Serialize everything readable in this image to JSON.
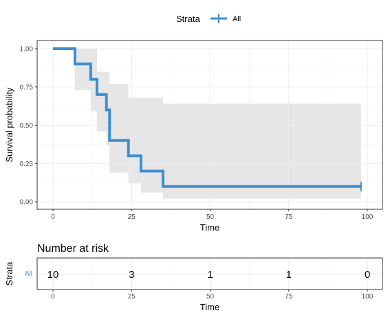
{
  "legend": {
    "title": "Strata",
    "label": "All",
    "color": "#3d8fcf"
  },
  "chart_data": [
    {
      "type": "line",
      "subtype": "kaplan-meier step curve with confidence band",
      "xlabel": "Time",
      "ylabel": "Survival probability",
      "xlim": [
        0,
        100
      ],
      "ylim": [
        0,
        1
      ],
      "x_ticks": [
        0,
        25,
        50,
        75,
        100
      ],
      "x_tick_labels": [
        "0",
        "25",
        "50",
        "75",
        "100"
      ],
      "y_ticks": [
        0,
        0.25,
        0.5,
        0.75,
        1
      ],
      "y_tick_labels": [
        "0.00",
        "0.25",
        "0.50",
        "0.75",
        "1.00"
      ],
      "grid": true,
      "legend_position": "top",
      "series": [
        {
          "name": "All",
          "color": "#3d8fcf",
          "step_times": [
            0,
            7,
            12,
            14,
            17,
            18,
            24,
            28,
            35,
            98
          ],
          "survival": [
            1.0,
            0.9,
            0.8,
            0.7,
            0.6,
            0.4,
            0.3,
            0.2,
            0.1,
            0.1
          ],
          "ci_lower": [
            1.0,
            0.73,
            0.59,
            0.46,
            0.37,
            0.19,
            0.12,
            0.06,
            0.02,
            0.02
          ],
          "ci_upper": [
            1.0,
            1.0,
            1.0,
            0.85,
            0.85,
            0.77,
            0.68,
            0.68,
            0.64,
            0.64
          ],
          "censor_times": [
            98
          ],
          "band_color": "#e6e6e6"
        }
      ]
    },
    {
      "type": "table",
      "title": "Number at risk",
      "ylabel": "Strata",
      "xlabel": "Time",
      "xlim": [
        0,
        100
      ],
      "x_ticks": [
        0,
        25,
        50,
        75,
        100
      ],
      "x_tick_labels": [
        "0",
        "25",
        "50",
        "75",
        "100"
      ],
      "row_label": "All",
      "row_label_color": "#3d8fcf",
      "times": [
        0,
        25,
        50,
        75,
        100
      ],
      "counts": [
        "10",
        "3",
        "1",
        "1",
        "0"
      ]
    }
  ]
}
